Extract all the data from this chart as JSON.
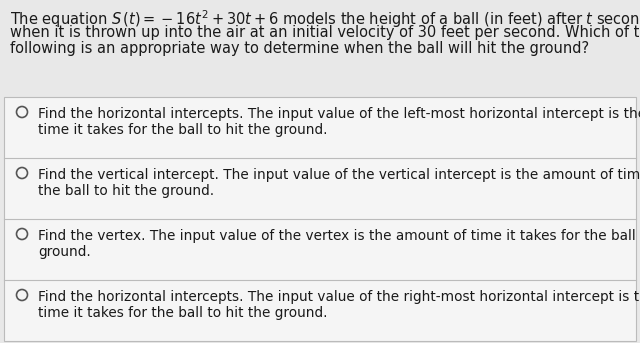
{
  "background_color": "#e8e8e8",
  "answer_bg": "#f5f5f5",
  "divider_color": "#bbbbbb",
  "text_color": "#1a1a1a",
  "circle_color": "#555555",
  "title_lines": [
    "The equation $S\\,(t) = -16t^2 + 30t + 6$ models the height of a ball (in feet) after $t$ seconds",
    "when it is thrown up into the air at an initial velocity of 30 feet per second. Which of the",
    "following is an appropriate way to determine when the ball will hit the ground?"
  ],
  "options": [
    [
      "Find the horizontal intercepts. The input value of the left-most horizontal intercept is the amount of",
      "time it takes for the ball to hit the ground."
    ],
    [
      "Find the vertical intercept. The input value of the vertical intercept is the amount of time it takes for",
      "the ball to hit the ground."
    ],
    [
      "Find the vertex. The input value of the vertex is the amount of time it takes for the ball to hit the",
      "ground."
    ],
    [
      "Find the horizontal intercepts. The input value of the right-most horizontal intercept is the amount of",
      "time it takes for the ball to hit the ground."
    ]
  ],
  "title_fontsize": 10.5,
  "option_fontsize": 9.8
}
